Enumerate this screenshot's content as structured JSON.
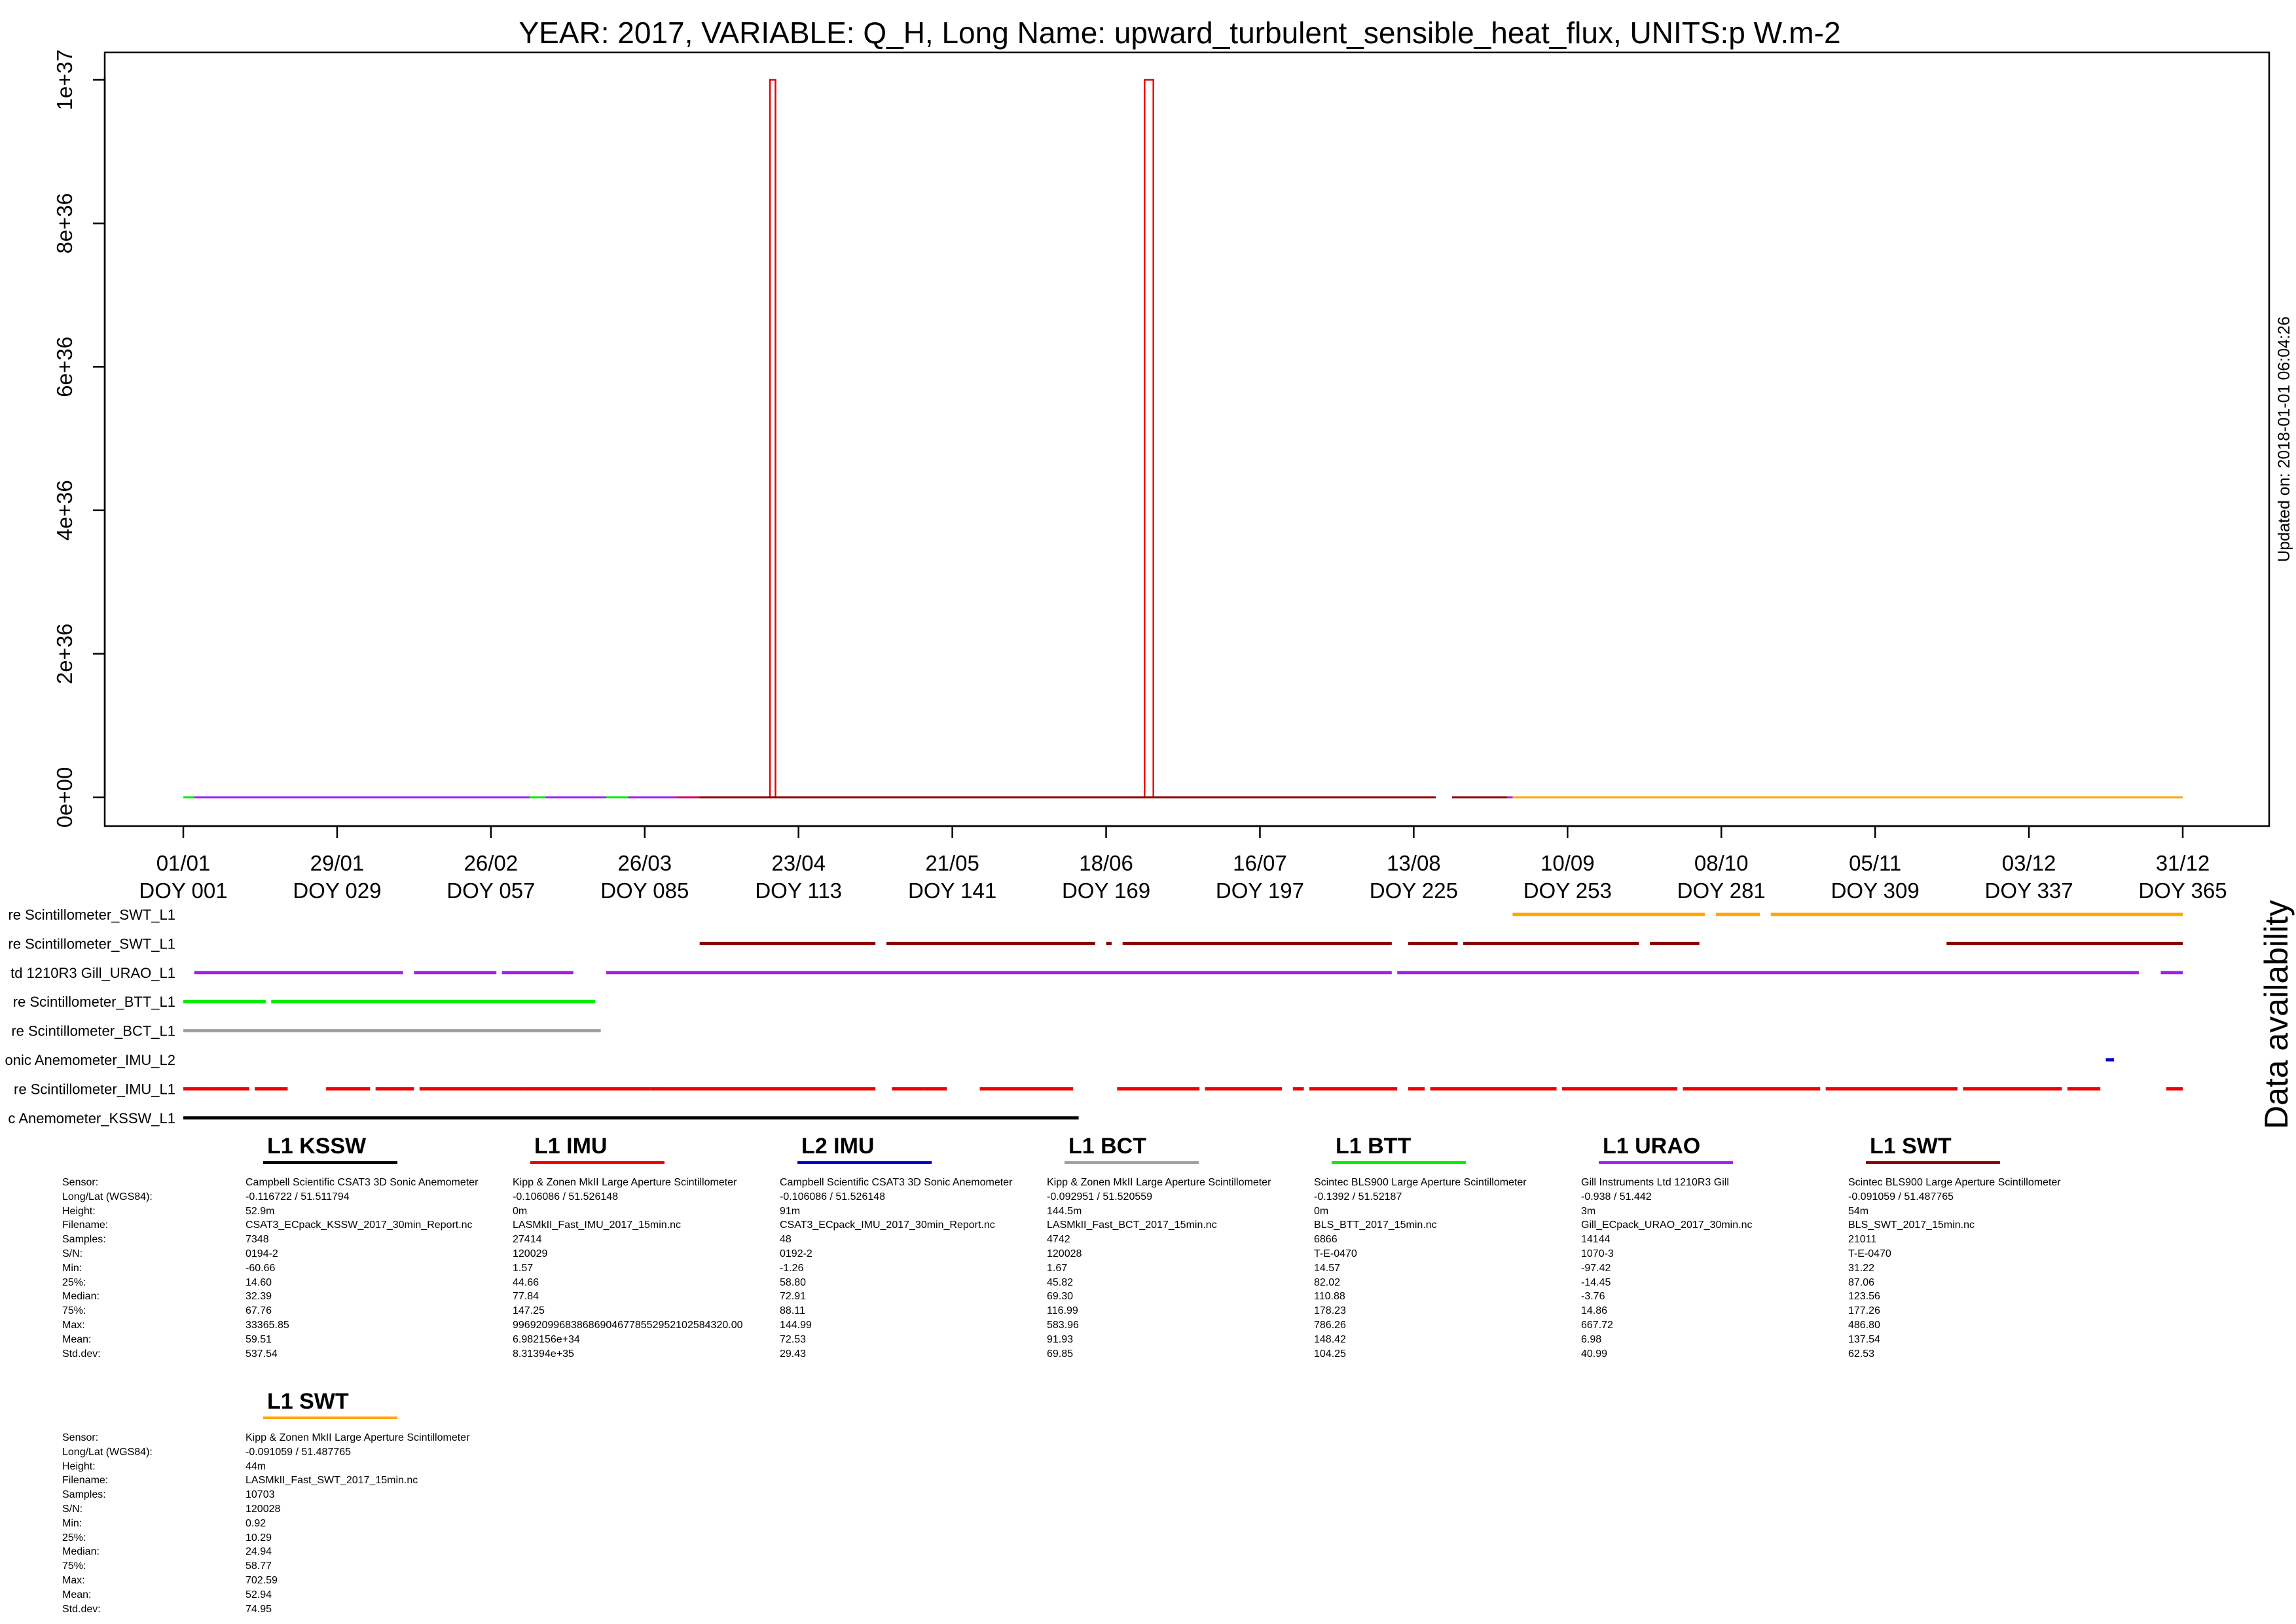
{
  "chart_data": {
    "type": "line",
    "title": "YEAR: 2017, VARIABLE: Q_H, Long Name: upward_turbulent_sensible_heat_flux, UNITS:p W.m-2",
    "updated": "Updated on: 2018-01-01 06:04:26",
    "availability_label": "Data availability",
    "xlim": [
      1,
      365
    ],
    "ylim": [
      -4e+35,
      1.04e+37
    ],
    "x_ticks": [
      {
        "doy": 1,
        "date": "01/01",
        "label": "DOY 001"
      },
      {
        "doy": 29,
        "date": "29/01",
        "label": "DOY 029"
      },
      {
        "doy": 57,
        "date": "26/02",
        "label": "DOY 057"
      },
      {
        "doy": 85,
        "date": "26/03",
        "label": "DOY 085"
      },
      {
        "doy": 113,
        "date": "23/04",
        "label": "DOY 113"
      },
      {
        "doy": 141,
        "date": "21/05",
        "label": "DOY 141"
      },
      {
        "doy": 169,
        "date": "18/06",
        "label": "DOY 169"
      },
      {
        "doy": 197,
        "date": "16/07",
        "label": "DOY 197"
      },
      {
        "doy": 225,
        "date": "13/08",
        "label": "DOY 225"
      },
      {
        "doy": 253,
        "date": "10/09",
        "label": "DOY 253"
      },
      {
        "doy": 281,
        "date": "08/10",
        "label": "DOY 281"
      },
      {
        "doy": 309,
        "date": "05/11",
        "label": "DOY 309"
      },
      {
        "doy": 337,
        "date": "03/12",
        "label": "DOY 337"
      },
      {
        "doy": 365,
        "date": "31/12",
        "label": "DOY 365"
      }
    ],
    "y_ticks": [
      {
        "value": 0,
        "label": "0e+00"
      },
      {
        "value": 2e+36,
        "label": "2e+36"
      },
      {
        "value": 4e+36,
        "label": "4e+36"
      },
      {
        "value": 6e+36,
        "label": "6e+36"
      },
      {
        "value": 8e+36,
        "label": "8e+36"
      },
      {
        "value": 1e+37,
        "label": "1e+37"
      }
    ],
    "series": [
      {
        "color": "#00ee00",
        "segments": [
          [
            1,
            103
          ]
        ]
      },
      {
        "color": "#a020f0",
        "segments": [
          [
            3,
            64
          ],
          [
            67,
            78
          ],
          [
            82,
            95
          ],
          [
            99,
            138
          ],
          [
            142,
            164
          ],
          [
            167,
            199
          ],
          [
            201,
            229
          ],
          [
            232,
            266
          ],
          [
            268,
            293
          ],
          [
            295,
            321
          ],
          [
            322,
            350
          ]
        ]
      },
      {
        "color": "#ee0000",
        "points": [
          [
            91,
            0
          ],
          [
            107.8,
            0
          ],
          [
            107.8,
            1e+37
          ],
          [
            108.8,
            1e+37
          ],
          [
            108.8,
            0
          ],
          [
            176.0,
            0
          ],
          [
            176.0,
            1e+37
          ],
          [
            177.6,
            1e+37
          ],
          [
            177.6,
            0
          ],
          [
            229,
            0
          ]
        ]
      },
      {
        "color": "#8b0000",
        "segments": [
          [
            95,
            229
          ],
          [
            232,
            242
          ]
        ]
      },
      {
        "color": "#ffa500",
        "segments": [
          [
            243,
            365
          ]
        ]
      }
    ],
    "availability": [
      {
        "name": "re Scintillometer_SWT_L1",
        "color": "#ffa500",
        "segments": [
          [
            243,
            278
          ],
          [
            280,
            288
          ],
          [
            290,
            365
          ]
        ]
      },
      {
        "name": "re Scintillometer_SWT_L1",
        "color": "#8b0000",
        "segments": [
          [
            95,
            127
          ],
          [
            129,
            167
          ],
          [
            169,
            170
          ],
          [
            172,
            221
          ],
          [
            224,
            233
          ],
          [
            234,
            266
          ],
          [
            268,
            277
          ],
          [
            322,
            365
          ]
        ]
      },
      {
        "name": "td 1210R3 Gill_URAO_L1",
        "color": "#a020f0",
        "segments": [
          [
            3,
            41
          ],
          [
            43,
            58
          ],
          [
            59,
            72
          ],
          [
            78,
            221
          ],
          [
            222,
            357
          ],
          [
            361,
            365
          ]
        ]
      },
      {
        "name": "re Scintillometer_BTT_L1",
        "color": "#00ee00",
        "segments": [
          [
            1,
            16
          ],
          [
            17,
            76
          ]
        ]
      },
      {
        "name": "re Scintillometer_BCT_L1",
        "color": "#a0a0a0",
        "segments": [
          [
            1,
            77
          ]
        ]
      },
      {
        "name": "onic Anemometer_IMU_L2",
        "color": "#0000cc",
        "segments": [
          [
            351,
            352.5
          ]
        ]
      },
      {
        "name": "re Scintillometer_IMU_L1",
        "color": "#ee0000",
        "segments": [
          [
            1,
            6
          ],
          [
            6,
            13
          ],
          [
            14,
            20
          ],
          [
            27,
            35
          ],
          [
            36,
            38
          ],
          [
            38,
            43
          ],
          [
            44,
            61
          ],
          [
            61,
            63
          ],
          [
            63,
            86
          ],
          [
            86,
            90
          ],
          [
            90,
            127
          ],
          [
            130,
            136
          ],
          [
            136,
            140
          ],
          [
            146,
            163
          ],
          [
            171,
            186
          ],
          [
            187,
            201
          ],
          [
            203,
            205
          ],
          [
            206,
            222
          ],
          [
            224,
            227
          ],
          [
            228,
            251
          ],
          [
            252,
            273
          ],
          [
            274,
            299
          ],
          [
            300,
            324
          ],
          [
            325,
            343
          ],
          [
            344,
            350
          ],
          [
            362,
            365
          ]
        ]
      },
      {
        "name": "c Anemometer_KSSW_L1",
        "color": "#000000",
        "segments": [
          [
            1,
            164
          ]
        ]
      }
    ]
  },
  "stats": {
    "row_labels": [
      "Sensor:",
      "Long/Lat (WGS84):",
      "Height:",
      "Filename:",
      "Samples:",
      "S/N:",
      "Min:",
      "25%:",
      "Median:",
      "75%:",
      "Max:",
      "Mean:",
      "Std.dev:"
    ],
    "row1": [
      {
        "title": "L1 KSSW",
        "color": "#000000",
        "values": [
          "Campbell Scientific CSAT3 3D Sonic Anemometer",
          "-0.116722 / 51.511794",
          "52.9m",
          "CSAT3_ECpack_KSSW_2017_30min_Report.nc",
          "7348",
          "0194-2",
          "-60.66",
          "14.60",
          "32.39",
          "67.76",
          "33365.85",
          "59.51",
          "537.54"
        ]
      },
      {
        "title": "L1 IMU",
        "color": "#ee0000",
        "values": [
          "Kipp & Zonen MkII Large Aperture Scintillometer",
          "-0.106086 / 51.526148",
          "0m",
          "LASMkII_Fast_IMU_2017_15min.nc",
          "27414",
          "120029",
          "1.57",
          "44.66",
          "77.84",
          "147.25",
          "996920996838686904677855295210258432​0.00",
          "6.982156e+34",
          "8.31394e+35"
        ]
      },
      {
        "title": "L2 IMU",
        "color": "#0000cc",
        "values": [
          "Campbell Scientific CSAT3 3D Sonic Anemometer",
          "-0.106086 / 51.526148",
          "91m",
          "CSAT3_ECpack_IMU_2017_30min_Report.nc",
          "48",
          "0192-2",
          "-1.26",
          "58.80",
          "72.91",
          "88.11",
          "144.99",
          "72.53",
          "29.43"
        ]
      },
      {
        "title": "L1 BCT",
        "color": "#a0a0a0",
        "values": [
          "Kipp & Zonen MkII Large Aperture Scintillometer",
          "-0.092951 / 51.520559",
          "144.5m",
          "LASMkII_Fast_BCT_2017_15min.nc",
          "4742",
          "120028",
          "1.67",
          "45.82",
          "69.30",
          "116.99",
          "583.96",
          "91.93",
          "69.85"
        ]
      },
      {
        "title": "L1 BTT",
        "color": "#00ee00",
        "values": [
          "Scintec BLS900 Large Aperture Scintillometer",
          "-0.1392 / 51.52187",
          "0m",
          "BLS_BTT_2017_15min.nc",
          "6866",
          "T-E-0470",
          "14.57",
          "82.02",
          "110.88",
          "178.23",
          "786.26",
          "148.42",
          "104.25"
        ]
      },
      {
        "title": "L1 URAO",
        "color": "#a020f0",
        "values": [
          "Gill Instruments Ltd 1210R3 Gill",
          "-0.938 / 51.442",
          "3m",
          "Gill_ECpack_URAO_2017_30min.nc",
          "14144",
          "1070-3",
          "-97.42",
          "-14.45",
          "-3.76",
          "14.86",
          "667.72",
          "6.98",
          "40.99"
        ]
      },
      {
        "title": "L1 SWT",
        "color": "#8b0000",
        "values": [
          "Scintec BLS900 Large Aperture Scintillometer",
          "-0.091059 / 51.487765",
          "54m",
          "BLS_SWT_2017_15min.nc",
          "21011",
          "T-E-0470",
          "31.22",
          "87.06",
          "123.56",
          "177.26",
          "486.80",
          "137.54",
          "62.53"
        ]
      }
    ],
    "row2": [
      {
        "title": "L1 SWT",
        "color": "#ffa500",
        "values": [
          "Kipp & Zonen MkII Large Aperture Scintillometer",
          "-0.091059 / 51.487765",
          "44m",
          "LASMkII_Fast_SWT_2017_15min.nc",
          "10703",
          "120028",
          "0.92",
          "10.29",
          "24.94",
          "58.77",
          "702.59",
          "52.94",
          "74.95"
        ]
      }
    ]
  }
}
